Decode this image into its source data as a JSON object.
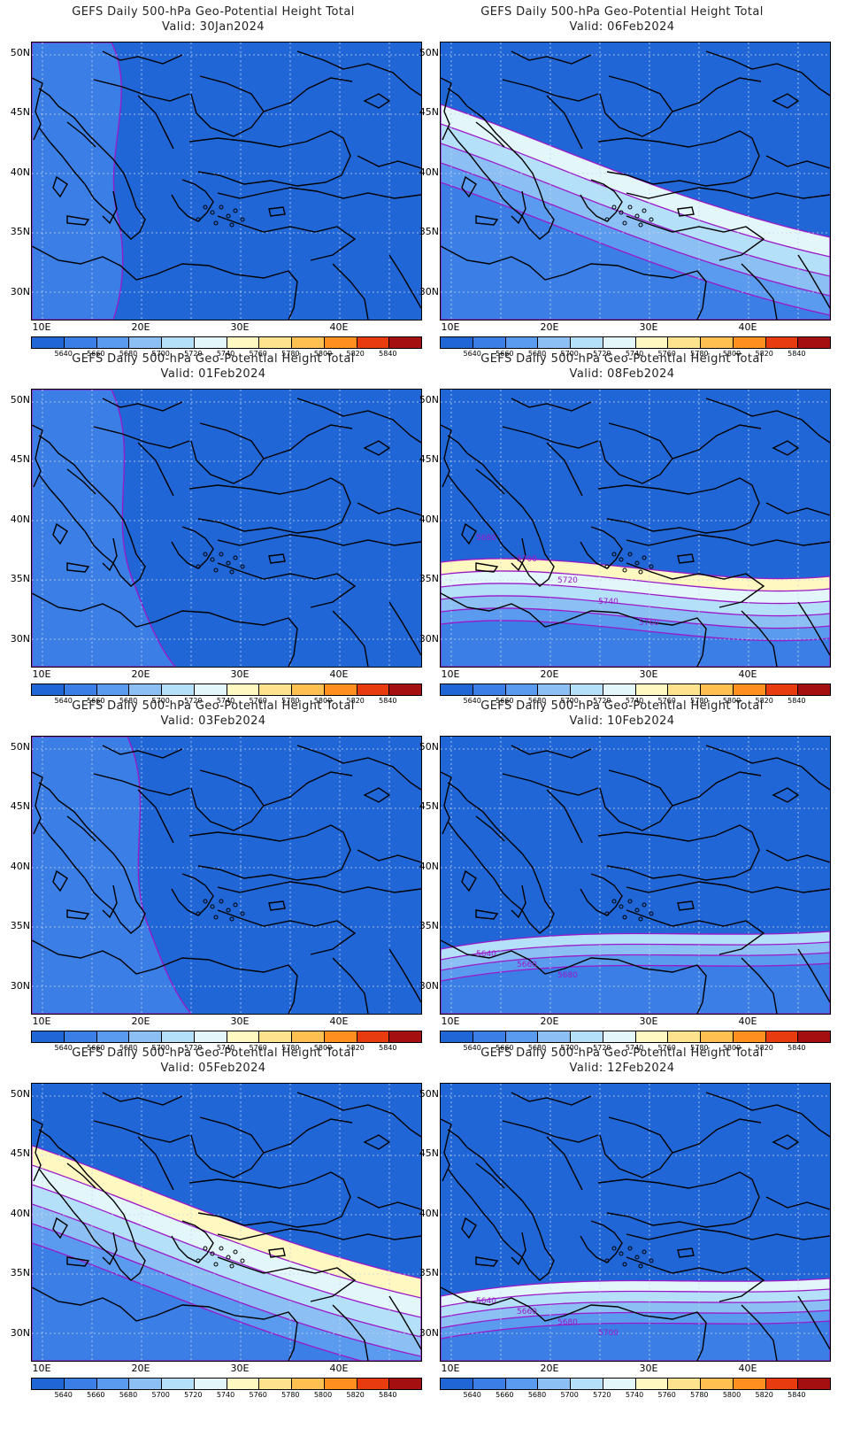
{
  "title_prefix": "GEFS Daily 500-hPa Geo-Potential Height Total",
  "colorbar": {
    "levels": [
      "5640",
      "5660",
      "5680",
      "5700",
      "5720",
      "5740",
      "5760",
      "5780",
      "5800",
      "5820",
      "5840"
    ],
    "colors": [
      "#2166d6",
      "#3a7ee6",
      "#5b9bef",
      "#8cc0f4",
      "#b5e0f9",
      "#e3f7fb",
      "#fff8c0",
      "#ffe28e",
      "#ffc052",
      "#ff8f1f",
      "#e83b10",
      "#a50f0f"
    ]
  },
  "axes": {
    "lat_labels": [
      "50N",
      "45N",
      "40N",
      "35N",
      "30N"
    ],
    "lon_labels": [
      "10E",
      "20E",
      "30E",
      "40E"
    ]
  },
  "panels": [
    {
      "id": "p1",
      "title": "GEFS Daily 500-hPa Geo-Potential Height Total",
      "valid": "Valid: 30Jan2024",
      "contour_labels": []
    },
    {
      "id": "p2",
      "title": "GEFS Daily 500-hPa Geo-Potential Height Total",
      "valid": "Valid: 06Feb2024",
      "contour_labels": []
    },
    {
      "id": "p3",
      "title": "GEFS Daily 500-hPa Geo-Potential Height Total",
      "valid": "Valid: 01Feb2024",
      "contour_labels": []
    },
    {
      "id": "p4",
      "title": "GEFS Daily 500-hPa Geo-Potential Height Total",
      "valid": "Valid: 08Feb2024",
      "contour_labels": [
        "5680",
        "5700",
        "5720",
        "5740",
        "5760"
      ]
    },
    {
      "id": "p5",
      "title": "GEFS Daily 500-hPa Geo-Potential Height Total",
      "valid": "Valid: 03Feb2024",
      "contour_labels": []
    },
    {
      "id": "p6",
      "title": "GEFS Daily 500-hPa Geo-Potential Height Total",
      "valid": "Valid: 10Feb2024",
      "contour_labels": [
        "5640",
        "5660",
        "5680"
      ]
    },
    {
      "id": "p7",
      "title": "GEFS Daily 500-hPa Geo-Potential Height Total",
      "valid": "Valid: 05Feb2024",
      "contour_labels": []
    },
    {
      "id": "p8",
      "title": "GEFS Daily 500-hPa Geo-Potential Height Total",
      "valid": "Valid: 12Feb2024",
      "contour_labels": [
        "5640",
        "5660",
        "5680",
        "5700"
      ]
    }
  ]
}
